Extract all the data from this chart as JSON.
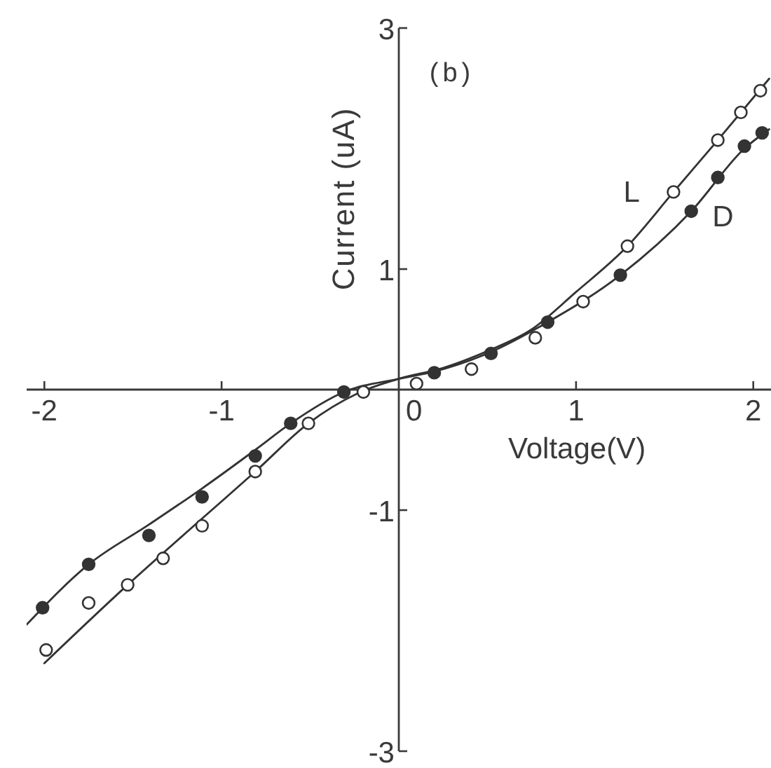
{
  "chart_data": {
    "type": "scatter",
    "xlabel": "Voltage(V)",
    "ylabel": "Current (uA)",
    "annotations": [
      "(b)"
    ],
    "xlim": [
      -2.1,
      2.1
    ],
    "ylim": [
      -3,
      3
    ],
    "xticks": [
      -2,
      -1,
      0,
      1,
      2
    ],
    "yticks": [
      -3,
      -1,
      1,
      3
    ],
    "marker": "circle",
    "line_style": "solid",
    "series": [
      {
        "name": "L",
        "color": "#333333",
        "x": [
          -1.99,
          -1.75,
          -1.53,
          -1.33,
          -1.11,
          -0.81,
          -0.51,
          -0.2,
          0.1,
          0.41,
          0.77,
          1.04,
          1.29,
          1.55,
          1.8,
          1.93,
          2.04
        ],
        "values": [
          -2.16,
          -1.77,
          -1.62,
          -1.4,
          -1.13,
          -0.68,
          -0.28,
          -0.02,
          0.05,
          0.17,
          0.43,
          0.73,
          1.19,
          1.64,
          2.07,
          2.3,
          2.48
        ]
      },
      {
        "name": "D",
        "color": "#333333",
        "x": [
          -2.01,
          -1.75,
          -1.41,
          -1.11,
          -0.81,
          -0.61,
          -0.31,
          0.2,
          0.52,
          0.84,
          1.25,
          1.65,
          1.8,
          1.95,
          2.05
        ],
        "values": [
          -1.81,
          -1.45,
          -1.21,
          -0.89,
          -0.55,
          -0.28,
          -0.02,
          0.14,
          0.3,
          0.56,
          0.95,
          1.48,
          1.76,
          2.02,
          2.13
        ]
      },
      {
        "type": "line",
        "color": "#333333",
        "marker": "none",
        "x": [
          -2.0,
          -1.53,
          -1.11,
          -0.81,
          -0.51,
          -0.2,
          0,
          0.25,
          0.5,
          0.75,
          1.0,
          1.29,
          1.55,
          1.8,
          2.09
        ],
        "values": [
          -2.27,
          -1.62,
          -1.07,
          -0.68,
          -0.28,
          -0.01,
          0.09,
          0.18,
          0.32,
          0.5,
          0.81,
          1.19,
          1.64,
          2.07,
          2.58
        ]
      },
      {
        "type": "line",
        "color": "#333333",
        "marker": "none",
        "x": [
          -2.1,
          -1.75,
          -1.41,
          -1.11,
          -0.81,
          -0.61,
          -0.31,
          0,
          0.2,
          0.5,
          0.84,
          1.25,
          1.65,
          1.95,
          2.09
        ],
        "values": [
          -1.95,
          -1.45,
          -1.12,
          -0.82,
          -0.5,
          -0.28,
          -0.02,
          0.09,
          0.15,
          0.3,
          0.56,
          0.95,
          1.48,
          2.0,
          2.16
        ]
      }
    ]
  }
}
